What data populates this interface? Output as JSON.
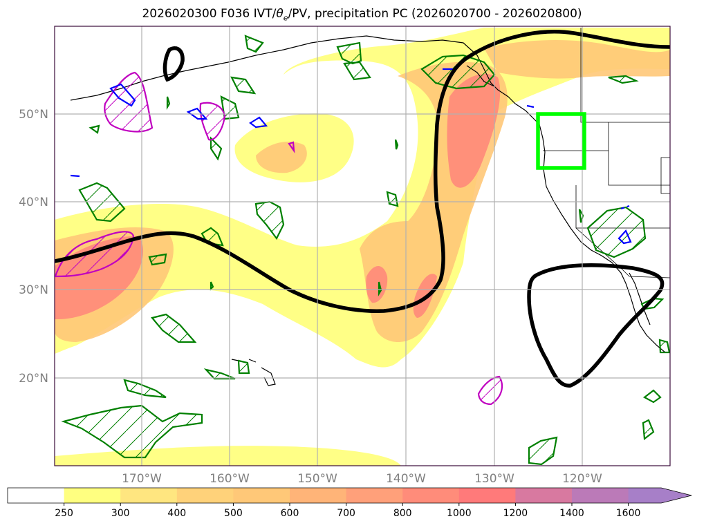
{
  "title": {
    "prefix": "2026020300 F036 IVT/",
    "theta": "θ",
    "theta_sub": "e",
    "suffix": "/PV, precipitation PC (2026020700 - 2026020800)"
  },
  "map": {
    "lat_labels": [
      "50°N",
      "40°N",
      "30°N",
      "20°N"
    ],
    "lon_labels": [
      "170°W",
      "160°W",
      "150°W",
      "140°W",
      "130°W",
      "120°W"
    ],
    "highlight_box": {
      "lat_range": [
        44,
        50
      ],
      "lon_range": [
        -125,
        -120
      ],
      "color": "#00ff00"
    },
    "colors": {
      "ivt_low": "#ffff80",
      "ivt_mid": "#ffd27a",
      "ivt_high": "#ff8a7a",
      "pv_line": "#000000",
      "precip_pc_pos": "#008000",
      "precip_pc_neg": "#0000ff",
      "extra": "#c000c0"
    }
  },
  "colorbar": {
    "levels": [
      "250",
      "300",
      "400",
      "500",
      "600",
      "700",
      "800",
      "1000",
      "1200",
      "1400",
      "1600"
    ],
    "colors": [
      "#ffffff",
      "#ffff80",
      "#ffe680",
      "#ffd27a",
      "#ffc878",
      "#ffb478",
      "#ffa07a",
      "#ff8c7a",
      "#ff7a7a",
      "#d879a0",
      "#bb7ab8",
      "#a77fc8"
    ]
  }
}
